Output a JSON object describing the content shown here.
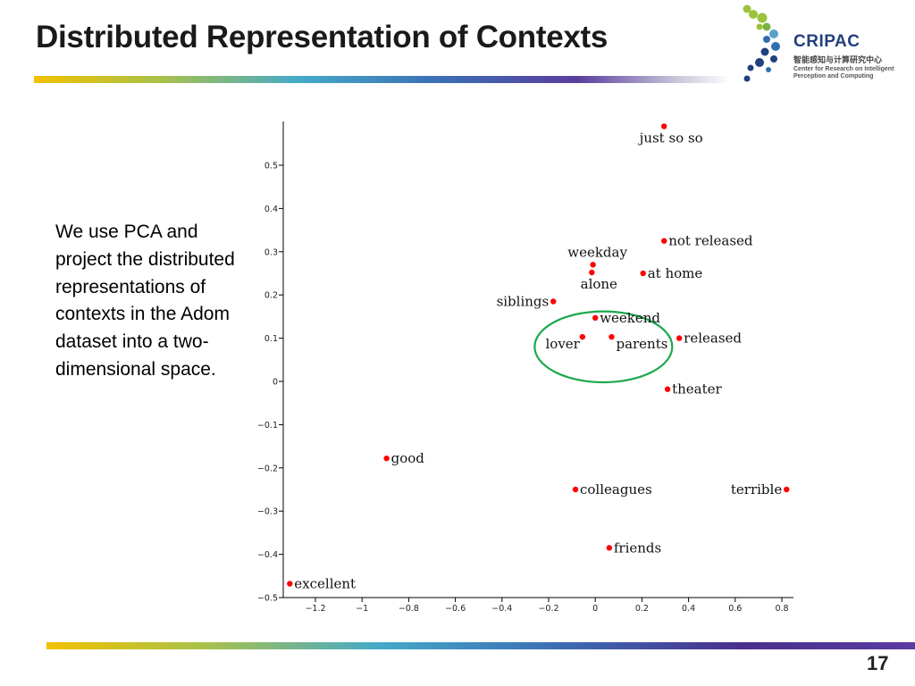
{
  "slide": {
    "title": "Distributed Representation of Contexts",
    "body": "We use PCA and project the distributed representations of contexts in the Adom dataset into a two-dimensional space.",
    "page_number": "17"
  },
  "logo": {
    "name": "CRIPAC",
    "subtitle_cn": "智能感知与计算研究中心",
    "subtitle_en": "Center for Research on Intelligent Perception and Computing",
    "color": "#23407e"
  },
  "colors": {
    "point": "#ff0000",
    "circle": "#1aa84b",
    "axis": "#000000"
  },
  "chart_data": {
    "type": "scatter",
    "title": "",
    "xlabel": "",
    "ylabel": "",
    "xlim": [
      -1.33,
      0.82
    ],
    "ylim": [
      -0.5,
      0.6
    ],
    "x_ticks": [
      "−1.2",
      "−1",
      "−0.8",
      "−0.6",
      "−0.4",
      "−0.2",
      "0",
      "0.2",
      "0.4",
      "0.6",
      "0.8"
    ],
    "x_tick_values": [
      -1.2,
      -1.0,
      -0.8,
      -0.6,
      -0.4,
      -0.2,
      0,
      0.2,
      0.4,
      0.6,
      0.8
    ],
    "y_ticks": [
      "0.5",
      "0.4",
      "0.3",
      "0.2",
      "0.1",
      "0",
      "−0.1",
      "−0.2",
      "−0.3",
      "−0.4",
      "−0.5"
    ],
    "y_tick_values": [
      0.5,
      0.4,
      0.3,
      0.2,
      0.1,
      0,
      -0.1,
      -0.2,
      -0.3,
      -0.4,
      -0.5
    ],
    "grid": false,
    "points": [
      {
        "label": "just so so",
        "x": 0.295,
        "y": 0.59,
        "label_pos": "below"
      },
      {
        "label": "not released",
        "x": 0.295,
        "y": 0.325,
        "label_pos": "right"
      },
      {
        "label": "weekday",
        "x": -0.01,
        "y": 0.27,
        "label_pos": "above"
      },
      {
        "label": "alone",
        "x": -0.015,
        "y": 0.252,
        "label_pos": "below"
      },
      {
        "label": "at home",
        "x": 0.205,
        "y": 0.25,
        "label_pos": "right"
      },
      {
        "label": "siblings",
        "x": -0.18,
        "y": 0.185,
        "label_pos": "left"
      },
      {
        "label": "weekend",
        "x": 0.0,
        "y": 0.147,
        "label_pos": "right"
      },
      {
        "label": "lover",
        "x": -0.055,
        "y": 0.103,
        "label_pos": "below-left"
      },
      {
        "label": "parents",
        "x": 0.07,
        "y": 0.103,
        "label_pos": "below-right"
      },
      {
        "label": "released",
        "x": 0.36,
        "y": 0.1,
        "label_pos": "right"
      },
      {
        "label": "theater",
        "x": 0.31,
        "y": -0.018,
        "label_pos": "right"
      },
      {
        "label": "good",
        "x": -0.895,
        "y": -0.178,
        "label_pos": "right"
      },
      {
        "label": "colleagues",
        "x": -0.085,
        "y": -0.25,
        "label_pos": "right"
      },
      {
        "label": "terrible",
        "x": 0.82,
        "y": -0.25,
        "label_pos": "left"
      },
      {
        "label": "friends",
        "x": 0.06,
        "y": -0.385,
        "label_pos": "right"
      },
      {
        "label": "excellent",
        "x": -1.31,
        "y": -0.468,
        "label_pos": "right"
      }
    ],
    "annotations": [
      {
        "type": "ellipse",
        "cx": 0.035,
        "cy": 0.08,
        "rx": 0.295,
        "ry": 0.082,
        "description": "cluster: weekend, lover, parents"
      }
    ]
  }
}
